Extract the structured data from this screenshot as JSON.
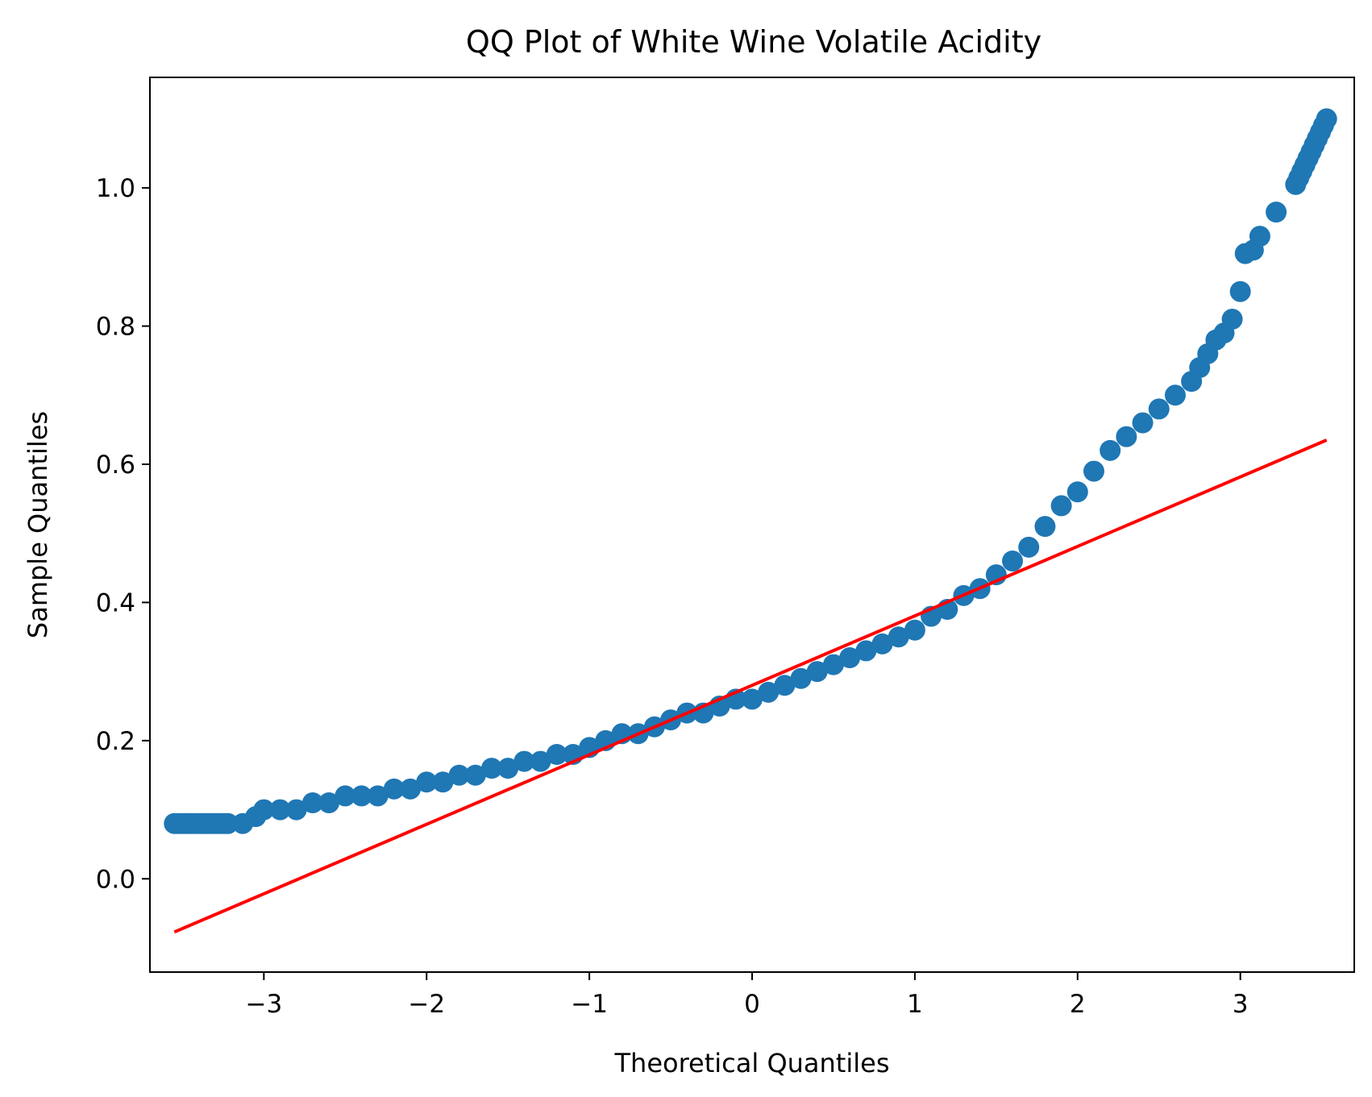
{
  "chart_data": {
    "type": "scatter",
    "title": "QQ Plot of White Wine Volatile Acidity",
    "xlabel": "Theoretical Quantiles",
    "ylabel": "Sample Quantiles",
    "xlim": [
      -3.7,
      3.7
    ],
    "ylim": [
      -0.135,
      1.16
    ],
    "xticks": [
      -3,
      -2,
      -1,
      0,
      1,
      2,
      3
    ],
    "xtick_labels": [
      "−3",
      "−2",
      "−1",
      "0",
      "1",
      "2",
      "3"
    ],
    "yticks": [
      0.0,
      0.2,
      0.4,
      0.6,
      0.8,
      1.0
    ],
    "ytick_labels": [
      "0.0",
      "0.2",
      "0.4",
      "0.6",
      "0.8",
      "1.0"
    ],
    "grid": false,
    "series": [
      {
        "kind": "points",
        "color": "#1f77b4",
        "x": [
          -3.55,
          -3.35,
          -3.22,
          -3.13,
          -3.05,
          -3.0,
          -2.9,
          -2.8,
          -2.7,
          -2.6,
          -2.5,
          -2.4,
          -2.3,
          -2.2,
          -2.1,
          -2.0,
          -1.9,
          -1.8,
          -1.7,
          -1.6,
          -1.5,
          -1.4,
          -1.3,
          -1.2,
          -1.1,
          -1.0,
          -0.9,
          -0.8,
          -0.7,
          -0.6,
          -0.5,
          -0.4,
          -0.3,
          -0.2,
          -0.1,
          0.0,
          0.1,
          0.2,
          0.3,
          0.4,
          0.5,
          0.6,
          0.7,
          0.8,
          0.9,
          1.0,
          1.1,
          1.2,
          1.3,
          1.4,
          1.5,
          1.6,
          1.7,
          1.8,
          1.9,
          2.0,
          2.1,
          2.2,
          2.3,
          2.4,
          2.5,
          2.6,
          2.7,
          2.75,
          2.8,
          2.85,
          2.9,
          2.95,
          3.0,
          3.03,
          3.08,
          3.12,
          3.22,
          3.34,
          3.53
        ],
        "y": [
          0.08,
          0.08,
          0.08,
          0.08,
          0.09,
          0.1,
          0.1,
          0.1,
          0.11,
          0.11,
          0.12,
          0.12,
          0.12,
          0.13,
          0.13,
          0.14,
          0.14,
          0.15,
          0.15,
          0.16,
          0.16,
          0.17,
          0.17,
          0.18,
          0.18,
          0.19,
          0.2,
          0.21,
          0.21,
          0.22,
          0.23,
          0.24,
          0.24,
          0.25,
          0.26,
          0.26,
          0.27,
          0.28,
          0.29,
          0.3,
          0.31,
          0.32,
          0.33,
          0.34,
          0.35,
          0.36,
          0.38,
          0.39,
          0.41,
          0.42,
          0.44,
          0.46,
          0.48,
          0.51,
          0.54,
          0.56,
          0.59,
          0.62,
          0.64,
          0.66,
          0.68,
          0.7,
          0.72,
          0.74,
          0.76,
          0.78,
          0.79,
          0.81,
          0.85,
          0.905,
          0.91,
          0.93,
          0.965,
          1.005,
          1.1
        ]
      },
      {
        "kind": "line",
        "color": "#ff0000",
        "x": [
          -3.55,
          3.53
        ],
        "y": [
          -0.077,
          0.635
        ]
      }
    ]
  }
}
